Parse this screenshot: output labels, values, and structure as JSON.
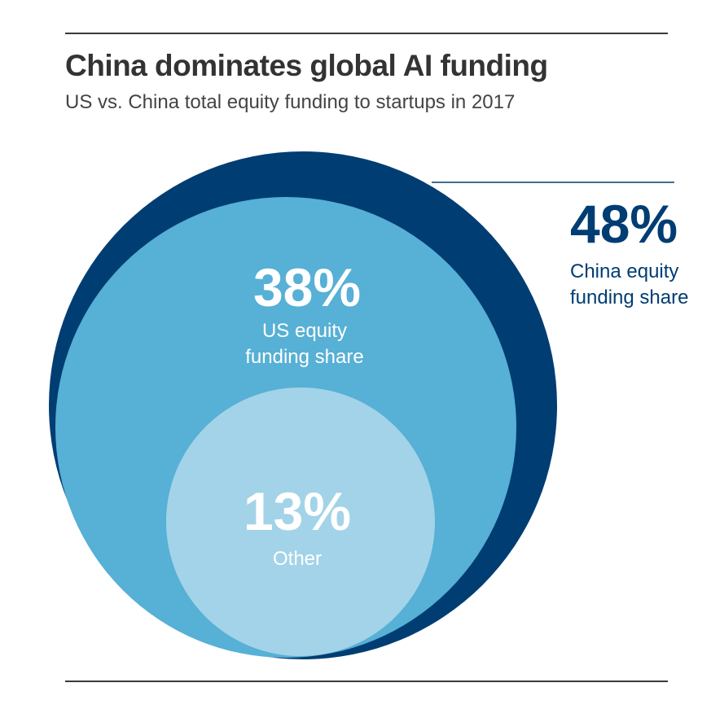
{
  "title": "China dominates global AI funding",
  "subtitle": "US vs. China total equity funding to startups in 2017",
  "colors": {
    "china": "#003d73",
    "us": "#57b0d5",
    "other": "#a3d3e8",
    "rule": "#3a3a3a",
    "leader": "#003d73"
  },
  "chart_data": {
    "type": "pie",
    "categories": [
      "China",
      "US",
      "Other"
    ],
    "values": [
      48,
      38,
      13
    ],
    "unit": "%",
    "series": [
      {
        "name": "China equity funding share",
        "value": 48,
        "value_label": "48%",
        "label_lines": [
          "China equity",
          "funding share"
        ]
      },
      {
        "name": "US equity funding share",
        "value": 38,
        "value_label": "38%",
        "label_lines": [
          "US equity",
          "funding share"
        ]
      },
      {
        "name": "Other",
        "value": 13,
        "value_label": "13%",
        "label_lines": [
          "Other"
        ]
      }
    ],
    "title": "China dominates global AI funding",
    "subtitle": "US vs. China total equity funding to startups in 2017"
  }
}
